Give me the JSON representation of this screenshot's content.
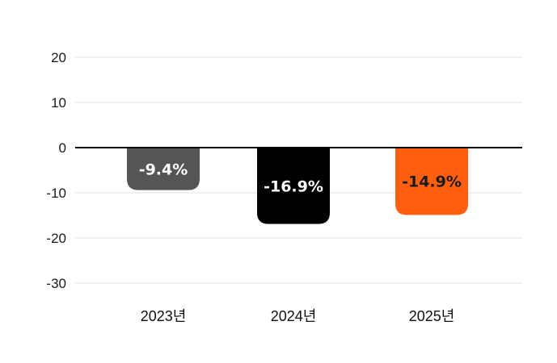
{
  "chart_data": {
    "type": "bar",
    "title": "",
    "xlabel": "",
    "ylabel": "",
    "categories": [
      "2023년",
      "2024년",
      "2025년"
    ],
    "values": [
      -9.4,
      -16.9,
      -14.9
    ],
    "data_labels": [
      "-9.4%",
      "-16.9%",
      "-14.9%"
    ],
    "bar_colors": [
      "#555555",
      "#000000",
      "#ff5f0f"
    ],
    "data_label_colors": [
      "#ffffff",
      "#ffffff",
      "#1a1a1a"
    ],
    "ylim": [
      -30,
      20
    ],
    "yticks": [
      20,
      10,
      0,
      -10,
      -20,
      -30
    ],
    "ytick_labels": [
      "20",
      "10",
      "0",
      "-10",
      "-20",
      "-30"
    ],
    "grid": true,
    "legend": "none"
  }
}
